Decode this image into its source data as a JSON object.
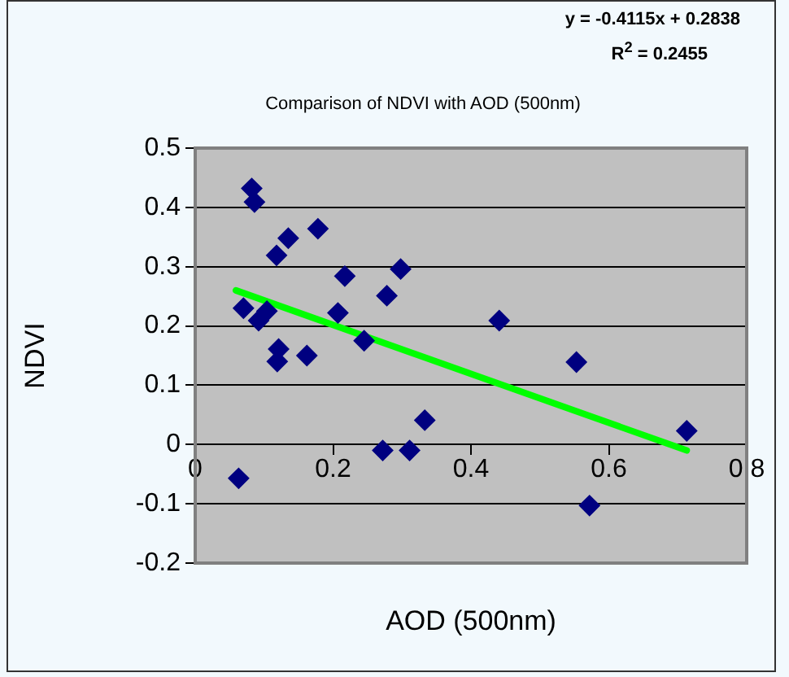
{
  "chart_data": {
    "type": "scatter",
    "title": "Comparison of NDVI with AOD (500nm)",
    "xlabel": "AOD (500nm)",
    "ylabel": "NDVI",
    "annotations": [
      "y = -0.4115x + 0.2838",
      "R$^{2}$ = 0.2455"
    ],
    "xlim": [
      0,
      0.8
    ],
    "xticks": [
      0,
      0.2,
      0.4,
      0.6,
      0.8
    ],
    "ylim": [
      -0.2,
      0.5
    ],
    "yticks": [
      -0.2,
      -0.1,
      0,
      0.1,
      0.2,
      0.3,
      0.4,
      0.5
    ],
    "grid": "y",
    "legend": false,
    "series": [
      {
        "marker": "diamond",
        "color": "#000080",
        "x": [
          0.082,
          0.086,
          0.135,
          0.118,
          0.178,
          0.217,
          0.298,
          0.278,
          0.07,
          0.092,
          0.104,
          0.207,
          0.245,
          0.121,
          0.119,
          0.162,
          0.441,
          0.553,
          0.333,
          0.272,
          0.311,
          0.063,
          0.572,
          0.713
        ],
        "values": [
          0.432,
          0.409,
          0.348,
          0.319,
          0.364,
          0.284,
          0.296,
          0.251,
          0.23,
          0.209,
          0.225,
          0.222,
          0.175,
          0.161,
          0.14,
          0.15,
          0.209,
          0.139,
          0.041,
          -0.01,
          -0.01,
          -0.057,
          -0.103,
          0.023
        ]
      },
      {
        "type": "line",
        "marker": "none",
        "color": "#00ff00",
        "x": [
          0.059,
          0.713
        ],
        "values": [
          0.26,
          -0.01
        ]
      }
    ]
  }
}
